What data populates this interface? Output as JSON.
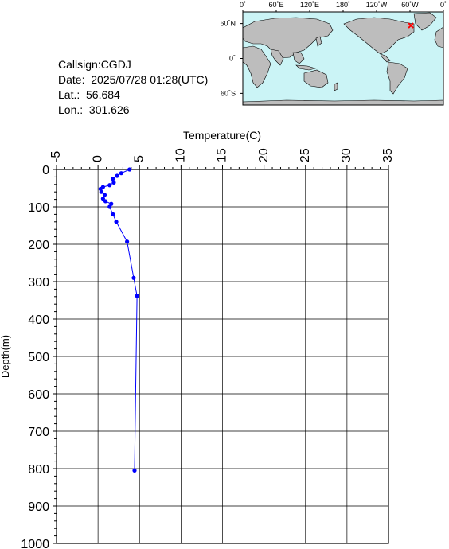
{
  "info": {
    "callsign": "Callsign:CGDJ",
    "date": "Date:  2025/07/28 01:28(UTC)",
    "lat": "Lat.:  56.684",
    "lon": "Lon.:  301.626"
  },
  "map": {
    "lon_ticks": [
      "0˚",
      "60˚E",
      "120˚E",
      "180˚",
      "120˚W",
      "60˚W",
      "0˚"
    ],
    "lat_ticks": [
      "60˚N",
      "0˚",
      "60˚S"
    ],
    "ocean_color": "#cbf4f6",
    "land_color": "#bdbdbd",
    "marker_color": "#ff0000",
    "marker": {
      "lon": 301.626,
      "lat": 56.684
    }
  },
  "chart_data": {
    "type": "line",
    "title": "",
    "xlabel": "Temperature(C)",
    "ylabel": "Depth(m)",
    "xlim": [
      -5,
      35
    ],
    "ylim": [
      0,
      1000
    ],
    "x_ticks": [
      -5,
      0,
      5,
      10,
      15,
      20,
      25,
      30,
      35
    ],
    "y_ticks": [
      0,
      100,
      200,
      300,
      400,
      500,
      600,
      700,
      800,
      900,
      1000
    ],
    "y_inverted": true,
    "x_axis_position": "top",
    "grid": true,
    "line_color": "#0000ff",
    "series": [
      {
        "temperature": [
          3.8,
          2.8,
          2.3,
          1.8,
          1.9,
          1.4,
          0.6,
          0.3,
          0.4,
          0.8,
          0.6,
          0.9,
          1.6,
          1.4,
          1.8,
          2.2,
          3.5,
          4.3,
          4.7,
          4.4
        ],
        "depth": [
          0,
          10,
          17,
          25,
          35,
          42,
          47,
          52,
          60,
          68,
          78,
          85,
          92,
          100,
          120,
          140,
          193,
          290,
          338,
          805
        ]
      }
    ]
  }
}
